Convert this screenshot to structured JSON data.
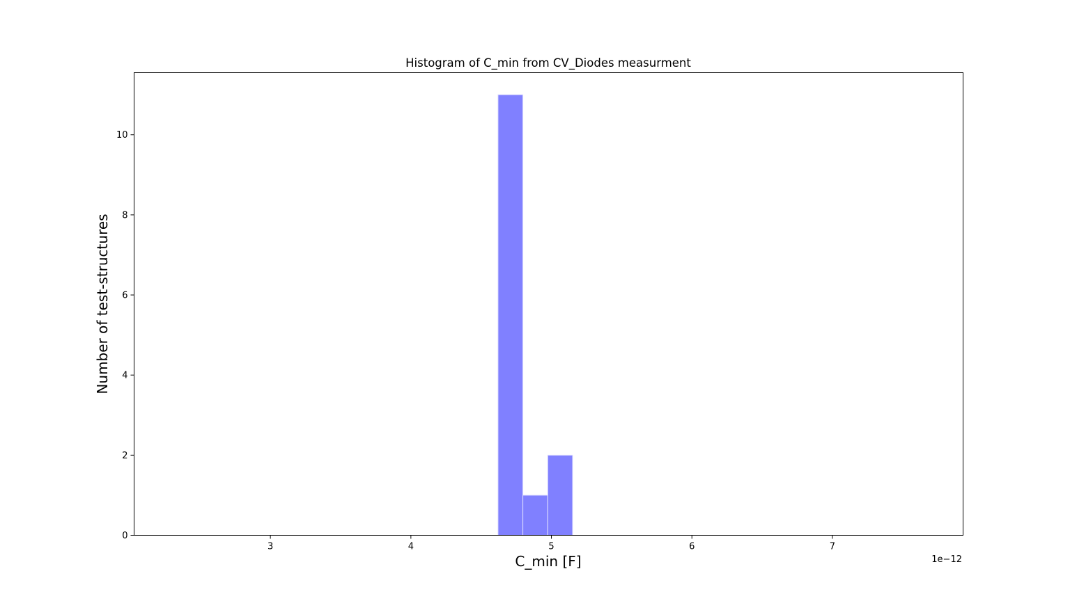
{
  "chart_data": {
    "type": "bar",
    "title": "Histogram of C_min from CV_Diodes measurment",
    "xlabel": "C_min [F]",
    "ylabel": "Number of test-structures",
    "x_offset_label": "1e−12",
    "xlim": [
      2.03,
      7.93
    ],
    "ylim": [
      0,
      11.55
    ],
    "xticks": [
      3,
      4,
      5,
      6,
      7
    ],
    "xtick_labels": [
      "3",
      "4",
      "5",
      "6",
      "7"
    ],
    "yticks": [
      0,
      2,
      4,
      6,
      8,
      10
    ],
    "ytick_labels": [
      "0",
      "2",
      "4",
      "6",
      "8",
      "10"
    ],
    "bins": [
      {
        "x0": 4.62,
        "x1": 4.797,
        "value": 11
      },
      {
        "x0": 4.797,
        "x1": 4.974,
        "value": 1
      },
      {
        "x0": 4.974,
        "x1": 5.151,
        "value": 2
      }
    ],
    "bar_color": "#8080ff",
    "bar_edge_color": "#e0e0ff",
    "grid": false,
    "legend": "none"
  }
}
